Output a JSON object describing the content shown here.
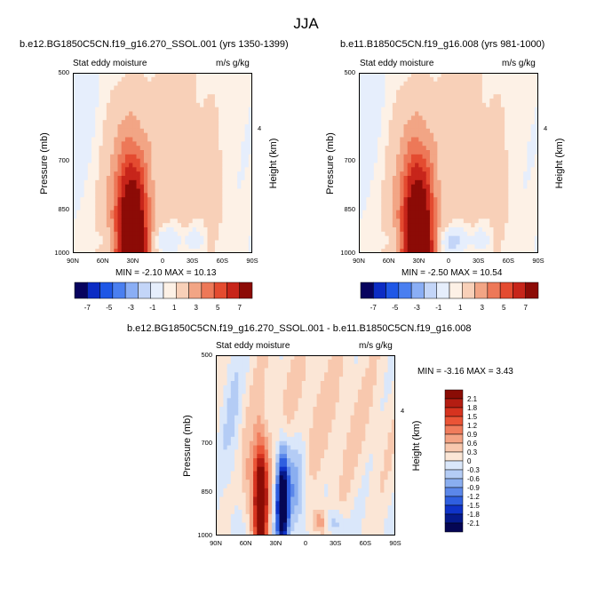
{
  "title": "JJA",
  "panels": [
    {
      "title": "b.e12.BG1850C5CN.f19_g16.270_SSOL.001 (yrs 1350-1399)",
      "left_label": "Stat eddy moisture",
      "right_label": "m/s g/kg",
      "ylabel": "Pressure (mb)",
      "y2label": "Height (km)",
      "minmax": "MIN = -2.10  MAX = 10.13",
      "ymax_label": "4",
      "xticks": [
        "90N",
        "60N",
        "30N",
        "0",
        "30S",
        "60S",
        "90S"
      ],
      "yticks": [
        "500",
        "700",
        "850",
        "1000"
      ]
    },
    {
      "title": "b.e11.B1850C5CN.f19_g16.008 (yrs 981-1000)",
      "left_label": "Stat eddy moisture",
      "right_label": "m/s g/kg",
      "ylabel": "Pressure (mb)",
      "y2label": "Height (km)",
      "minmax": "MIN = -2.50  MAX = 10.54",
      "ymax_label": "4",
      "xticks": [
        "90N",
        "60N",
        "30N",
        "0",
        "30S",
        "60S",
        "90S"
      ],
      "yticks": [
        "500",
        "700",
        "850",
        "1000"
      ]
    },
    {
      "title": "b.e12.BG1850C5CN.f19_g16.270_SSOL.001 - b.e11.B1850C5CN.f19_g16.008",
      "left_label": "Stat eddy moisture",
      "right_label": "m/s g/kg",
      "ylabel": "Pressure (mb)",
      "y2label": "Height (km)",
      "minmax": "MIN = -3.16  MAX = 3.43",
      "ymax_label": "4",
      "xticks": [
        "90N",
        "60N",
        "30N",
        "0",
        "30S",
        "60S",
        "90S"
      ],
      "yticks": [
        "500",
        "700",
        "850",
        "1000"
      ]
    }
  ],
  "colorbar_top": {
    "labels": [
      "-7",
      "-5",
      "-3",
      "-1",
      "1",
      "3",
      "5",
      "7"
    ],
    "colors": [
      "#08035e",
      "#0c2cc4",
      "#1f57e6",
      "#4a7ff0",
      "#8aaef5",
      "#c3d5f8",
      "#e6eefc",
      "#fdf1e6",
      "#f8d0b8",
      "#f2a585",
      "#ed7858",
      "#e44b30",
      "#c7251a",
      "#8c0b06"
    ]
  },
  "colorbar_diff": {
    "labels": [
      "2.1",
      "1.8",
      "1.5",
      "1.2",
      "0.9",
      "0.6",
      "0.3",
      "0",
      "-0.3",
      "-0.6",
      "-0.9",
      "-1.2",
      "-1.5",
      "-1.8",
      "-2.1"
    ],
    "colors": [
      "#8a0c05",
      "#b41d12",
      "#d6331f",
      "#ea5436",
      "#f07c5c",
      "#f4a384",
      "#f8c8ae",
      "#fbe6d6",
      "#dae7fa",
      "#b4ccf5",
      "#8aaef0",
      "#5b87ea",
      "#2f5fe0",
      "#0f33c8",
      "#061a8c",
      "#050654"
    ]
  },
  "chart_data": [
    {
      "type": "heatmap",
      "title": "b.e12.BG1850C5CN.f19_g16.270_SSOL.001 (yrs 1350-1399)",
      "xlabel": "",
      "ylabel": "Pressure (mb)",
      "y2label": "Height (km)",
      "x_range": [
        "90N",
        "90S"
      ],
      "y_range": [
        1000,
        500
      ],
      "min": -2.1,
      "max": 10.13,
      "features": [
        {
          "lat": 30,
          "p_top": 600,
          "peak": 9,
          "desc": "maximum near 30N lower troposphere"
        }
      ]
    },
    {
      "type": "heatmap",
      "title": "b.e11.B1850C5CN.f19_g16.008 (yrs 981-1000)",
      "xlabel": "",
      "ylabel": "Pressure (mb)",
      "y2label": "Height (km)",
      "x_range": [
        "90N",
        "90S"
      ],
      "y_range": [
        1000,
        500
      ],
      "min": -2.5,
      "max": 10.54,
      "features": [
        {
          "lat": 30,
          "p_top": 600,
          "peak": 9
        }
      ]
    },
    {
      "type": "heatmap",
      "title": "b.e12.BG1850C5CN.f19_g16.270_SSOL.001 - b.e11.B1850C5CN.f19_g16.008",
      "xlabel": "",
      "ylabel": "Pressure (mb)",
      "y2label": "Height (km)",
      "x_range": [
        "90N",
        "90S"
      ],
      "y_range": [
        1000,
        500
      ],
      "min": -3.16,
      "max": 3.43,
      "features": [
        {
          "lat": 40,
          "sign": "positive",
          "peak": 2.5
        },
        {
          "lat": 25,
          "sign": "negative",
          "peak": -2.5
        }
      ]
    }
  ]
}
